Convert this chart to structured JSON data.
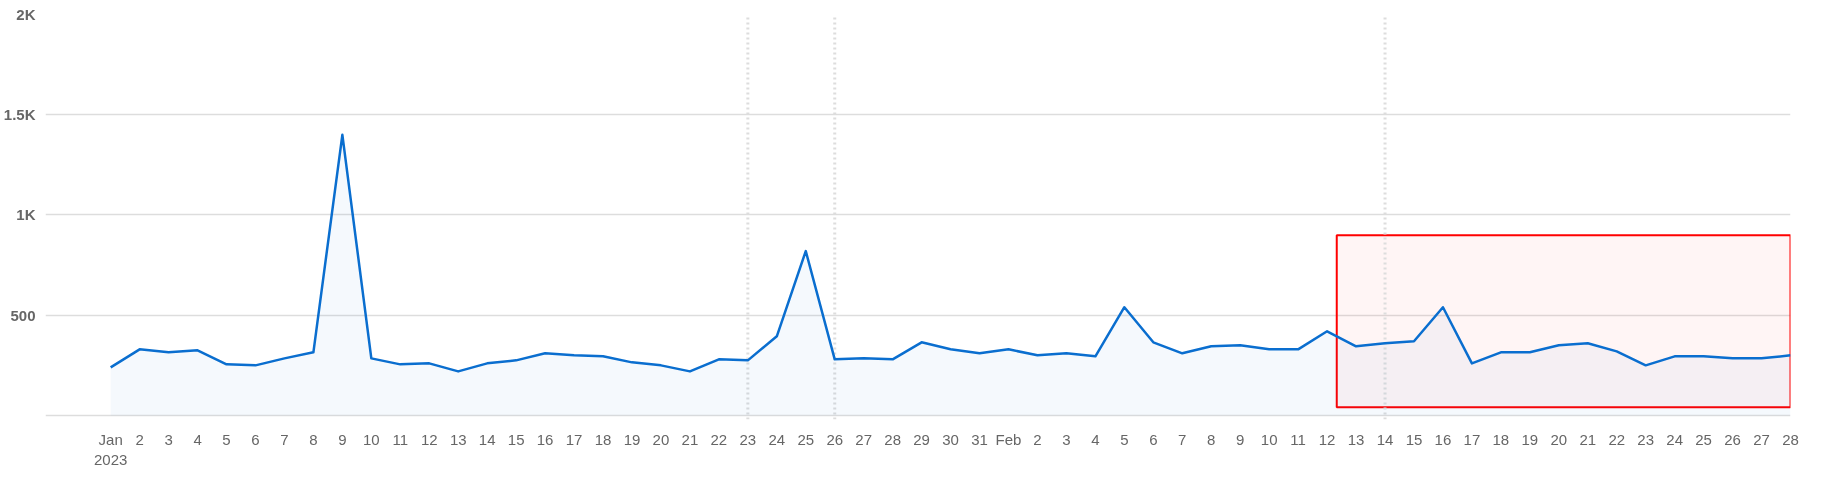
{
  "chart_data": {
    "type": "area",
    "x": [
      "2023-01-01",
      "2023-01-02",
      "2023-01-03",
      "2023-01-04",
      "2023-01-05",
      "2023-01-06",
      "2023-01-07",
      "2023-01-08",
      "2023-01-09",
      "2023-01-10",
      "2023-01-11",
      "2023-01-12",
      "2023-01-13",
      "2023-01-14",
      "2023-01-15",
      "2023-01-16",
      "2023-01-17",
      "2023-01-18",
      "2023-01-19",
      "2023-01-20",
      "2023-01-21",
      "2023-01-22",
      "2023-01-23",
      "2023-01-24",
      "2023-01-25",
      "2023-01-26",
      "2023-01-27",
      "2023-01-28",
      "2023-01-29",
      "2023-01-30",
      "2023-01-31",
      "2023-02-01",
      "2023-02-02",
      "2023-02-03",
      "2023-02-04",
      "2023-02-05",
      "2023-02-06",
      "2023-02-07",
      "2023-02-08",
      "2023-02-09",
      "2023-02-10",
      "2023-02-11",
      "2023-02-12",
      "2023-02-13",
      "2023-02-14",
      "2023-02-15",
      "2023-02-16",
      "2023-02-17",
      "2023-02-18",
      "2023-02-19",
      "2023-02-20",
      "2023-02-21",
      "2023-02-22",
      "2023-02-23",
      "2023-02-24",
      "2023-02-25",
      "2023-02-26",
      "2023-02-27",
      "2023-02-28"
    ],
    "series": [
      {
        "color": "#0a6ecf",
        "values": [
          240,
          330,
          315,
          325,
          255,
          250,
          285,
          315,
          1400,
          285,
          255,
          260,
          220,
          260,
          275,
          310,
          300,
          295,
          265,
          250,
          220,
          280,
          275,
          395,
          820,
          280,
          285,
          280,
          365,
          330,
          310,
          330,
          300,
          310,
          295,
          540,
          365,
          310,
          345,
          350,
          330,
          330,
          420,
          345,
          360,
          370,
          540,
          260,
          315,
          315,
          350,
          360,
          320,
          250,
          295,
          295,
          285,
          285,
          300
        ]
      }
    ],
    "xlim": [
      "2022-12-29T18:00",
      "2023-02-28"
    ],
    "ylim": [
      -20,
      2000
    ],
    "yticks": [
      {
        "value": 0,
        "label": null
      },
      {
        "value": 500,
        "label": "500"
      },
      {
        "value": 1000,
        "label": "1K"
      },
      {
        "value": 1500,
        "label": "1.5K"
      },
      {
        "value": 2000,
        "label": "2K"
      }
    ],
    "xticks": [
      {
        "value": "2023-01-01",
        "label": "Jan 2023"
      },
      {
        "value": "2023-01-02",
        "label": "2"
      },
      {
        "value": "2023-01-03",
        "label": "3"
      },
      {
        "value": "2023-01-04",
        "label": "4"
      },
      {
        "value": "2023-01-05",
        "label": "5"
      },
      {
        "value": "2023-01-06",
        "label": "6"
      },
      {
        "value": "2023-01-07",
        "label": "7"
      },
      {
        "value": "2023-01-08",
        "label": "8"
      },
      {
        "value": "2023-01-09",
        "label": "9"
      },
      {
        "value": "2023-01-10",
        "label": "10"
      },
      {
        "value": "2023-01-11",
        "label": "11"
      },
      {
        "value": "2023-01-12",
        "label": "12"
      },
      {
        "value": "2023-01-13",
        "label": "13"
      },
      {
        "value": "2023-01-14",
        "label": "14"
      },
      {
        "value": "2023-01-15",
        "label": "15"
      },
      {
        "value": "2023-01-16",
        "label": "16"
      },
      {
        "value": "2023-01-17",
        "label": "17"
      },
      {
        "value": "2023-01-18",
        "label": "18"
      },
      {
        "value": "2023-01-19",
        "label": "19"
      },
      {
        "value": "2023-01-20",
        "label": "20"
      },
      {
        "value": "2023-01-21",
        "label": "21"
      },
      {
        "value": "2023-01-22",
        "label": "22"
      },
      {
        "value": "2023-01-23",
        "label": "23"
      },
      {
        "value": "2023-01-24",
        "label": "24"
      },
      {
        "value": "2023-01-25",
        "label": "25"
      },
      {
        "value": "2023-01-26",
        "label": "26"
      },
      {
        "value": "2023-01-27",
        "label": "27"
      },
      {
        "value": "2023-01-28",
        "label": "28"
      },
      {
        "value": "2023-01-29",
        "label": "29"
      },
      {
        "value": "2023-01-30",
        "label": "30"
      },
      {
        "value": "2023-01-31",
        "label": "31"
      },
      {
        "value": "2023-02-01",
        "label": "Feb"
      },
      {
        "value": "2023-02-02",
        "label": "2"
      },
      {
        "value": "2023-02-03",
        "label": "3"
      },
      {
        "value": "2023-02-04",
        "label": "4"
      },
      {
        "value": "2023-02-05",
        "label": "5"
      },
      {
        "value": "2023-02-06",
        "label": "6"
      },
      {
        "value": "2023-02-07",
        "label": "7"
      },
      {
        "value": "2023-02-08",
        "label": "8"
      },
      {
        "value": "2023-02-09",
        "label": "9"
      },
      {
        "value": "2023-02-10",
        "label": "10"
      },
      {
        "value": "2023-02-11",
        "label": "11"
      },
      {
        "value": "2023-02-12",
        "label": "12"
      },
      {
        "value": "2023-02-13",
        "label": "13"
      },
      {
        "value": "2023-02-14",
        "label": "14"
      },
      {
        "value": "2023-02-15",
        "label": "15"
      },
      {
        "value": "2023-02-16",
        "label": "16"
      },
      {
        "value": "2023-02-17",
        "label": "17"
      },
      {
        "value": "2023-02-18",
        "label": "18"
      },
      {
        "value": "2023-02-19",
        "label": "19"
      },
      {
        "value": "2023-02-20",
        "label": "20"
      },
      {
        "value": "2023-02-21",
        "label": "21"
      },
      {
        "value": "2023-02-22",
        "label": "22"
      },
      {
        "value": "2023-02-23",
        "label": "23"
      },
      {
        "value": "2023-02-24",
        "label": "24"
      },
      {
        "value": "2023-02-25",
        "label": "25"
      },
      {
        "value": "2023-02-26",
        "label": "26"
      },
      {
        "value": "2023-02-27",
        "label": "27"
      },
      {
        "value": "2023-02-28",
        "label": "28"
      }
    ],
    "grid": "y",
    "ref_lines": [
      {
        "axis": "x",
        "value": "2023-01-23",
        "color": "#dddddd",
        "line_style": "dotted"
      },
      {
        "axis": "x",
        "value": "2023-01-26",
        "color": "#dddddd",
        "line_style": "dotted"
      },
      {
        "axis": "x",
        "value": "2023-02-14",
        "color": "#dddddd",
        "line_style": "dotted"
      }
    ],
    "bands": [
      {
        "axis": "x",
        "from": "2023-02-12T08:00",
        "to": "2023-02-28",
        "color": "#ff0000"
      }
    ]
  }
}
